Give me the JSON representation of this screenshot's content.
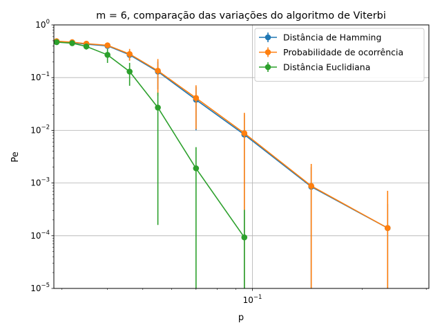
{
  "chart_data": {
    "type": "line",
    "title": "m = 6, comparação das variações do algoritmo de Viterbi",
    "xlabel": "p",
    "ylabel": "Pe",
    "xscale": "log",
    "yscale": "log",
    "xlim": [
      0.0285,
      0.305
    ],
    "ylim": [
      1e-05,
      1
    ],
    "grid": true,
    "legend_position": "top-right",
    "x_tick_labels": [
      {
        "value": 0.1,
        "base": "10",
        "exp": "−1"
      }
    ],
    "y_tick_labels": [
      {
        "value": 1e-05,
        "base": "10",
        "exp": "−5"
      },
      {
        "value": 0.0001,
        "base": "10",
        "exp": "−4"
      },
      {
        "value": 0.001,
        "base": "10",
        "exp": "−3"
      },
      {
        "value": 0.01,
        "base": "10",
        "exp": "−2"
      },
      {
        "value": 0.1,
        "base": "10",
        "exp": "−1"
      },
      {
        "value": 1,
        "base": "10",
        "exp": "0"
      }
    ],
    "series": [
      {
        "name": "Distância de Hamming",
        "color": "#1f77b4",
        "points": [
          {
            "x": 0.029,
            "y": 0.48,
            "lo": 0.45,
            "hi": 0.51
          },
          {
            "x": 0.032,
            "y": 0.46,
            "lo": 0.43,
            "hi": 0.49
          },
          {
            "x": 0.035,
            "y": 0.43,
            "lo": 0.39,
            "hi": 0.47
          },
          {
            "x": 0.04,
            "y": 0.4,
            "lo": 0.35,
            "hi": 0.45
          },
          {
            "x": 0.046,
            "y": 0.27,
            "lo": 0.21,
            "hi": 0.33
          },
          {
            "x": 0.055,
            "y": 0.13,
            "lo": 0.06,
            "hi": 0.2
          },
          {
            "x": 0.07,
            "y": 0.038,
            "lo": 0.01,
            "hi": 0.066
          },
          {
            "x": 0.095,
            "y": 0.0083,
            "lo": 1e-05,
            "hi": 0.02
          },
          {
            "x": 0.145,
            "y": 0.00085,
            "lo": 1e-05,
            "hi": 0.002
          },
          {
            "x": 0.235,
            "y": 0.00014,
            "lo": 1e-05,
            "hi": 0.0004
          }
        ]
      },
      {
        "name": "Probabilidade de ocorrência",
        "color": "#ff7f0e",
        "points": [
          {
            "x": 0.029,
            "y": 0.49,
            "lo": 0.46,
            "hi": 0.52
          },
          {
            "x": 0.032,
            "y": 0.47,
            "lo": 0.44,
            "hi": 0.5
          },
          {
            "x": 0.035,
            "y": 0.44,
            "lo": 0.4,
            "hi": 0.48
          },
          {
            "x": 0.04,
            "y": 0.41,
            "lo": 0.36,
            "hi": 0.46
          },
          {
            "x": 0.046,
            "y": 0.28,
            "lo": 0.21,
            "hi": 0.35
          },
          {
            "x": 0.055,
            "y": 0.135,
            "lo": 0.045,
            "hi": 0.225
          },
          {
            "x": 0.07,
            "y": 0.041,
            "lo": 0.0105,
            "hi": 0.0715
          },
          {
            "x": 0.095,
            "y": 0.0088,
            "lo": 1e-05,
            "hi": 0.0215
          },
          {
            "x": 0.145,
            "y": 0.00088,
            "lo": 1e-05,
            "hi": 0.0023
          },
          {
            "x": 0.235,
            "y": 0.00014,
            "lo": 1e-05,
            "hi": 0.00071
          }
        ]
      },
      {
        "name": "Distância Euclidiana",
        "color": "#2ca02c",
        "points": [
          {
            "x": 0.029,
            "y": 0.47,
            "lo": 0.44,
            "hi": 0.5
          },
          {
            "x": 0.032,
            "y": 0.45,
            "lo": 0.42,
            "hi": 0.48
          },
          {
            "x": 0.035,
            "y": 0.39,
            "lo": 0.34,
            "hi": 0.44
          },
          {
            "x": 0.04,
            "y": 0.27,
            "lo": 0.19,
            "hi": 0.35
          },
          {
            "x": 0.046,
            "y": 0.13,
            "lo": 0.07,
            "hi": 0.19
          },
          {
            "x": 0.055,
            "y": 0.027,
            "lo": 0.00016,
            "hi": 0.052
          },
          {
            "x": 0.07,
            "y": 0.0019,
            "lo": 1e-05,
            "hi": 0.0048
          },
          {
            "x": 0.095,
            "y": 9.3e-05,
            "lo": 1e-05,
            "hi": 0.00031
          }
        ]
      }
    ]
  }
}
